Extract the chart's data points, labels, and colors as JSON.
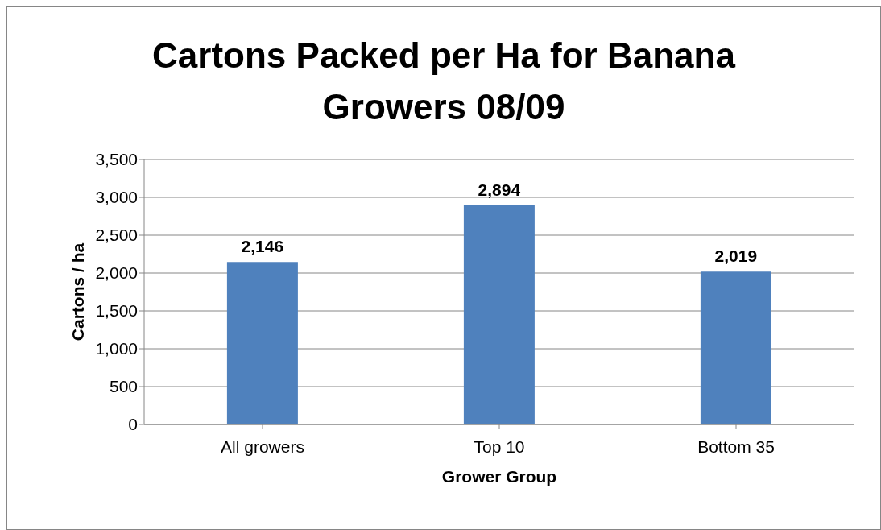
{
  "chart_data": {
    "type": "bar",
    "title": "Cartons Packed per Ha for Banana Growers 08/09",
    "xlabel": "Grower Group",
    "ylabel": "Cartons / ha",
    "categories": [
      "All growers",
      "Top 10",
      "Bottom 35"
    ],
    "values": [
      2146,
      2894,
      2019
    ],
    "color": "#4f81bd",
    "ylim": [
      0,
      3500
    ],
    "yticks": [
      {
        "value": 0,
        "label": "0"
      },
      {
        "value": 500,
        "label": "500"
      },
      {
        "value": 1000,
        "label": "1,000"
      },
      {
        "value": 1500,
        "label": "1,500"
      },
      {
        "value": 2000,
        "label": "2,000"
      },
      {
        "value": 2500,
        "label": "2,500"
      },
      {
        "value": 3000,
        "label": "3,000"
      },
      {
        "value": 3500,
        "label": "3,500"
      }
    ],
    "value_labels": [
      "2,146",
      "2,894",
      "2,019"
    ],
    "grid": "y",
    "legend": false
  }
}
